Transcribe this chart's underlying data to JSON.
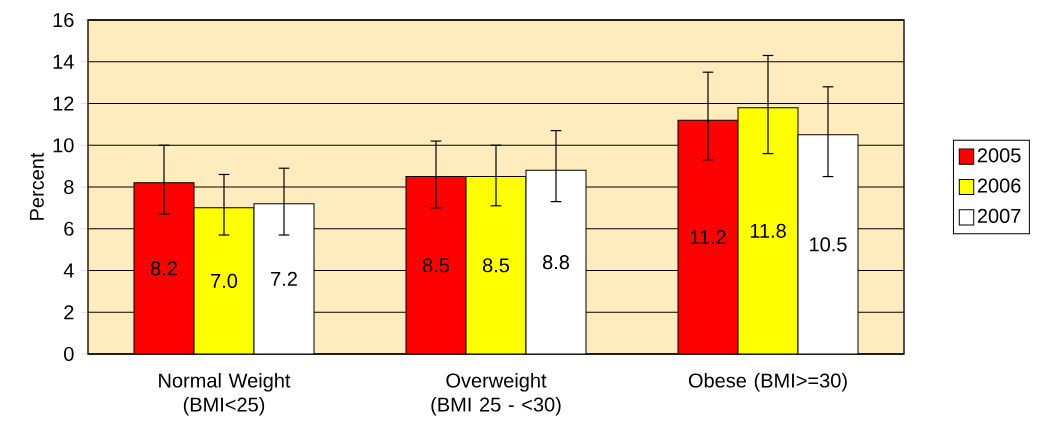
{
  "chart_data": {
    "type": "bar",
    "ylabel": "Percent",
    "categories": [
      "Normal Weight (BMI<25)",
      "Overweight (BMI 25 - <30)",
      "Obese (BMI>=30)"
    ],
    "series": [
      {
        "name": "2005",
        "color": "#ff0000",
        "values": [
          8.2,
          8.5,
          11.2
        ],
        "value_labels": [
          "8.2",
          "8.5",
          "11.2"
        ],
        "errors": [
          [
            6.7,
            10.0
          ],
          [
            7.0,
            10.2
          ],
          [
            9.3,
            13.5
          ]
        ]
      },
      {
        "name": "2006",
        "color": "#ffff00",
        "values": [
          7.0,
          8.5,
          11.8
        ],
        "value_labels": [
          "7.0",
          "8.5",
          "11.8"
        ],
        "errors": [
          [
            5.7,
            8.6
          ],
          [
            7.1,
            10.0
          ],
          [
            9.6,
            14.3
          ]
        ]
      },
      {
        "name": "2007",
        "color": "#ffffff",
        "values": [
          7.2,
          8.8,
          10.5
        ],
        "value_labels": [
          "7.2",
          "8.8",
          "10.5"
        ],
        "errors": [
          [
            5.7,
            8.9
          ],
          [
            7.3,
            10.7
          ],
          [
            8.5,
            12.8
          ]
        ]
      }
    ],
    "ylim": [
      0,
      16
    ],
    "yticks": [
      0,
      2,
      4,
      6,
      8,
      10,
      12,
      14,
      16
    ],
    "grid": "y",
    "legend": "right"
  }
}
